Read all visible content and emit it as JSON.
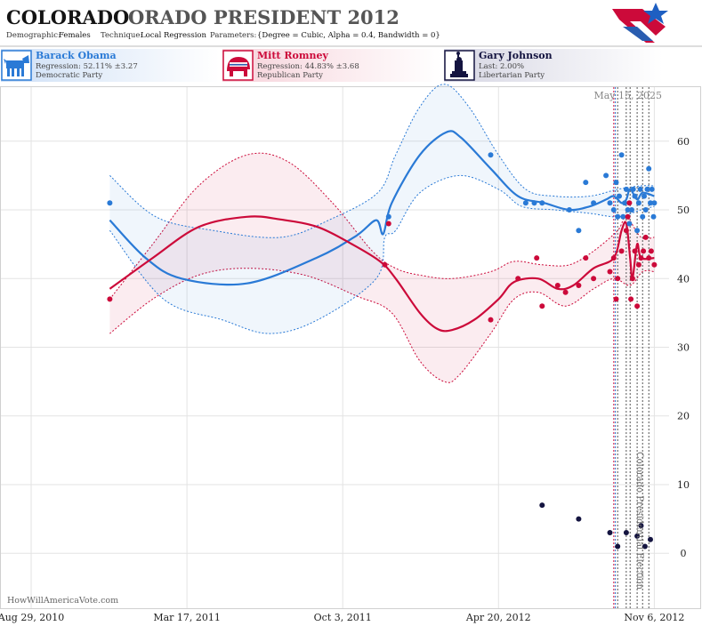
{
  "header": {
    "title_state": "COLORADO",
    "title_rest": "ORADO PRESIDENT 2012",
    "demographic_label": "Demographic:",
    "demographic_value": "Females",
    "technique_label": "Technique:",
    "technique_value": "Local Regression",
    "parameters_label": "Parameters:",
    "parameters_value": "{Degree = Cubic, Alpha = 0.4, Bandwidth = 0}"
  },
  "candidates": [
    {
      "name": "Barack Obama",
      "stat": "Regression: 52.11% ±3.27",
      "party": "Democratic Party",
      "color": "#2a7ad6",
      "icon": "donkey-icon"
    },
    {
      "name": "Mitt Romney",
      "stat": "Regression: 44.83% ±3.68",
      "party": "Republican Party",
      "color": "#cc0a3a",
      "icon": "elephant-icon"
    },
    {
      "name": "Gary Johnson",
      "stat": "Last: 2.00%",
      "party": "Libertarian Party",
      "color": "#141440",
      "icon": "statue-of-liberty-icon"
    }
  ],
  "colors": {
    "obama": "#2a7ad6",
    "romney": "#cc0a3a",
    "johnson": "#141440",
    "grid": "#dddddd"
  },
  "footer": {
    "watermark": "HowWillAmericaVote.com"
  },
  "chart_data": {
    "type": "scatter",
    "date_label": "May 15, 2025",
    "event_label": "Colorado Presidential Election",
    "x_ticks": [
      "Aug 29, 2010",
      "Mar 17, 2011",
      "Oct 3, 2011",
      "Apr 20, 2012",
      "Nov 6, 2012"
    ],
    "y_ticks": [
      0,
      10,
      20,
      30,
      40,
      50,
      60
    ],
    "ylim": [
      -8,
      68
    ],
    "xlim": [
      "2010-07-20",
      "2012-11-25"
    ],
    "vlines": [
      {
        "date": "2012-09-15",
        "color": "#cc0a3a"
      },
      {
        "date": "2012-09-17",
        "color": "#2a7ad6"
      },
      {
        "date": "2012-09-20",
        "color": "#555555"
      },
      {
        "date": "2012-10-01",
        "color": "#555555"
      },
      {
        "date": "2012-10-06",
        "color": "#555555"
      },
      {
        "date": "2012-10-15",
        "color": "#555555"
      },
      {
        "date": "2012-10-22",
        "color": "#555555"
      },
      {
        "date": "2012-10-30",
        "color": "#555555"
      }
    ],
    "series": [
      {
        "name": "Barack Obama",
        "color": "#2a7ad6",
        "trend": [
          [
            "2010-12-08",
            48.5
          ],
          [
            "2011-01-23",
            43
          ],
          [
            "2011-03-10",
            40
          ],
          [
            "2011-06-02",
            39.3
          ],
          [
            "2011-08-30",
            43
          ],
          [
            "2011-10-20",
            46.2
          ],
          [
            "2011-11-15",
            48.5
          ],
          [
            "2011-11-24",
            46.5
          ],
          [
            "2011-12-05",
            51
          ],
          [
            "2012-01-10",
            58
          ],
          [
            "2012-02-13",
            61.3
          ],
          [
            "2012-03-03",
            60.5
          ],
          [
            "2012-04-10",
            56
          ],
          [
            "2012-05-15",
            52
          ],
          [
            "2012-06-18",
            51
          ],
          [
            "2012-07-20",
            50
          ],
          [
            "2012-08-15",
            50.5
          ],
          [
            "2012-09-05",
            51.5
          ],
          [
            "2012-09-15",
            52
          ],
          [
            "2012-09-25",
            51
          ],
          [
            "2012-10-01",
            51.5
          ],
          [
            "2012-10-06",
            53
          ],
          [
            "2012-10-15",
            51.5
          ],
          [
            "2012-10-22",
            52.5
          ],
          [
            "2012-11-06",
            52
          ]
        ],
        "upper": [
          [
            "2010-12-08",
            55
          ],
          [
            "2011-02-05",
            49
          ],
          [
            "2011-04-20",
            47
          ],
          [
            "2011-07-15",
            46
          ],
          [
            "2011-09-15",
            48.5
          ],
          [
            "2011-11-17",
            52.5
          ],
          [
            "2011-12-10",
            58
          ],
          [
            "2012-01-10",
            65
          ],
          [
            "2012-02-10",
            68.3
          ],
          [
            "2012-03-13",
            65
          ],
          [
            "2012-04-20",
            58
          ],
          [
            "2012-05-25",
            53
          ],
          [
            "2012-07-01",
            52
          ],
          [
            "2012-08-15",
            52
          ],
          [
            "2012-09-20",
            53
          ],
          [
            "2012-10-20",
            53.5
          ],
          [
            "2012-11-06",
            53.5
          ]
        ],
        "lower": [
          [
            "2010-12-08",
            47
          ],
          [
            "2011-02-15",
            37
          ],
          [
            "2011-05-01",
            34
          ],
          [
            "2011-07-01",
            32
          ],
          [
            "2011-09-01",
            34
          ],
          [
            "2011-11-15",
            40
          ],
          [
            "2011-11-26",
            46
          ],
          [
            "2011-12-10",
            47
          ],
          [
            "2012-01-10",
            52.5
          ],
          [
            "2012-03-01",
            55
          ],
          [
            "2012-04-20",
            53
          ],
          [
            "2012-05-20",
            50.5
          ],
          [
            "2012-07-01",
            50
          ],
          [
            "2012-08-15",
            49.5
          ],
          [
            "2012-09-20",
            49
          ],
          [
            "2012-10-20",
            50
          ],
          [
            "2012-11-06",
            50.5
          ]
        ],
        "points": [
          [
            "2010-12-08",
            51
          ],
          [
            "2011-12-01",
            49
          ],
          [
            "2012-04-10",
            58
          ],
          [
            "2012-05-25",
            51
          ],
          [
            "2012-06-05",
            51
          ],
          [
            "2012-06-15",
            51
          ],
          [
            "2012-07-20",
            50
          ],
          [
            "2012-08-01",
            47
          ],
          [
            "2012-08-10",
            54
          ],
          [
            "2012-08-20",
            51
          ],
          [
            "2012-09-05",
            55
          ],
          [
            "2012-09-10",
            51
          ],
          [
            "2012-09-15",
            50
          ],
          [
            "2012-09-18",
            54
          ],
          [
            "2012-09-20",
            49
          ],
          [
            "2012-09-22",
            52
          ],
          [
            "2012-09-25",
            58
          ],
          [
            "2012-09-27",
            49
          ],
          [
            "2012-09-29",
            51
          ],
          [
            "2012-10-01",
            53
          ],
          [
            "2012-10-03",
            50
          ],
          [
            "2012-10-05",
            48
          ],
          [
            "2012-10-08",
            50
          ],
          [
            "2012-10-10",
            53
          ],
          [
            "2012-10-12",
            52
          ],
          [
            "2012-10-15",
            47
          ],
          [
            "2012-10-17",
            51
          ],
          [
            "2012-10-19",
            53
          ],
          [
            "2012-10-22",
            49
          ],
          [
            "2012-10-24",
            52
          ],
          [
            "2012-10-26",
            50
          ],
          [
            "2012-10-28",
            53
          ],
          [
            "2012-10-30",
            56
          ],
          [
            "2012-11-01",
            51
          ],
          [
            "2012-11-03",
            53
          ],
          [
            "2012-11-05",
            49
          ],
          [
            "2012-11-06",
            51
          ]
        ]
      },
      {
        "name": "Mitt Romney",
        "color": "#cc0a3a",
        "trend": [
          [
            "2010-12-08",
            38.5
          ],
          [
            "2011-02-01",
            43
          ],
          [
            "2011-04-01",
            47.5
          ],
          [
            "2011-06-02",
            49
          ],
          [
            "2011-07-15",
            48.6
          ],
          [
            "2011-09-01",
            47.5
          ],
          [
            "2011-10-15",
            45
          ],
          [
            "2011-11-20",
            42.5
          ],
          [
            "2011-12-10",
            40
          ],
          [
            "2012-01-10",
            35
          ],
          [
            "2012-02-01",
            32.7
          ],
          [
            "2012-02-20",
            32.5
          ],
          [
            "2012-03-20",
            34
          ],
          [
            "2012-04-20",
            37
          ],
          [
            "2012-05-10",
            39.5
          ],
          [
            "2012-06-10",
            40
          ],
          [
            "2012-07-05",
            38.5
          ],
          [
            "2012-07-25",
            39
          ],
          [
            "2012-08-20",
            41.5
          ],
          [
            "2012-09-15",
            43
          ],
          [
            "2012-09-25",
            47
          ],
          [
            "2012-10-01",
            48
          ],
          [
            "2012-10-06",
            43
          ],
          [
            "2012-10-09",
            40
          ],
          [
            "2012-10-15",
            45
          ],
          [
            "2012-10-20",
            43
          ],
          [
            "2012-11-06",
            43
          ]
        ],
        "upper": [
          [
            "2010-12-08",
            37
          ],
          [
            "2011-02-01",
            45
          ],
          [
            "2011-04-01",
            53.5
          ],
          [
            "2011-06-02",
            58
          ],
          [
            "2011-07-25",
            57
          ],
          [
            "2011-09-20",
            51
          ],
          [
            "2011-11-10",
            44
          ],
          [
            "2011-12-10",
            41.5
          ],
          [
            "2012-01-10",
            40.5
          ],
          [
            "2012-02-20",
            40
          ],
          [
            "2012-04-10",
            41
          ],
          [
            "2012-05-10",
            42.5
          ],
          [
            "2012-06-15",
            42
          ],
          [
            "2012-07-20",
            42
          ],
          [
            "2012-08-20",
            44
          ],
          [
            "2012-09-20",
            47
          ],
          [
            "2012-10-01",
            49
          ],
          [
            "2012-10-20",
            46
          ],
          [
            "2012-11-06",
            46
          ]
        ],
        "lower": [
          [
            "2010-12-08",
            32
          ],
          [
            "2011-02-01",
            37
          ],
          [
            "2011-04-01",
            40.5
          ],
          [
            "2011-06-02",
            41.5
          ],
          [
            "2011-08-15",
            40.5
          ],
          [
            "2011-10-20",
            37.5
          ],
          [
            "2011-12-05",
            35
          ],
          [
            "2012-01-10",
            28
          ],
          [
            "2012-02-10",
            25
          ],
          [
            "2012-03-01",
            26
          ],
          [
            "2012-04-10",
            32
          ],
          [
            "2012-05-10",
            37
          ],
          [
            "2012-06-10",
            38
          ],
          [
            "2012-07-15",
            36
          ],
          [
            "2012-08-20",
            38.5
          ],
          [
            "2012-09-15",
            40
          ],
          [
            "2012-10-06",
            39
          ],
          [
            "2012-10-22",
            41
          ],
          [
            "2012-11-06",
            41
          ]
        ],
        "points": [
          [
            "2010-12-08",
            37
          ],
          [
            "2011-11-26",
            42
          ],
          [
            "2011-12-01",
            48
          ],
          [
            "2012-04-10",
            34
          ],
          [
            "2012-05-15",
            40
          ],
          [
            "2012-06-08",
            43
          ],
          [
            "2012-06-15",
            36
          ],
          [
            "2012-07-05",
            39
          ],
          [
            "2012-07-15",
            38
          ],
          [
            "2012-08-01",
            39
          ],
          [
            "2012-08-10",
            43
          ],
          [
            "2012-08-20",
            40
          ],
          [
            "2012-09-10",
            41
          ],
          [
            "2012-09-15",
            43
          ],
          [
            "2012-09-18",
            37
          ],
          [
            "2012-09-20",
            40
          ],
          [
            "2012-09-25",
            44
          ],
          [
            "2012-10-01",
            47
          ],
          [
            "2012-10-03",
            49
          ],
          [
            "2012-10-05",
            51
          ],
          [
            "2012-10-07",
            37
          ],
          [
            "2012-10-09",
            40
          ],
          [
            "2012-10-12",
            44
          ],
          [
            "2012-10-15",
            36
          ],
          [
            "2012-10-17",
            42
          ],
          [
            "2012-10-20",
            43
          ],
          [
            "2012-10-23",
            44
          ],
          [
            "2012-10-26",
            46
          ],
          [
            "2012-10-30",
            43
          ],
          [
            "2012-11-02",
            44
          ],
          [
            "2012-11-06",
            42
          ]
        ]
      },
      {
        "name": "Gary Johnson",
        "color": "#141440",
        "points": [
          [
            "2012-06-15",
            7
          ],
          [
            "2012-08-01",
            5
          ],
          [
            "2012-09-10",
            3
          ],
          [
            "2012-09-20",
            1
          ],
          [
            "2012-10-01",
            3
          ],
          [
            "2012-10-15",
            2.5
          ],
          [
            "2012-10-20",
            4
          ],
          [
            "2012-10-25",
            1
          ],
          [
            "2012-11-01",
            2
          ]
        ]
      }
    ]
  }
}
